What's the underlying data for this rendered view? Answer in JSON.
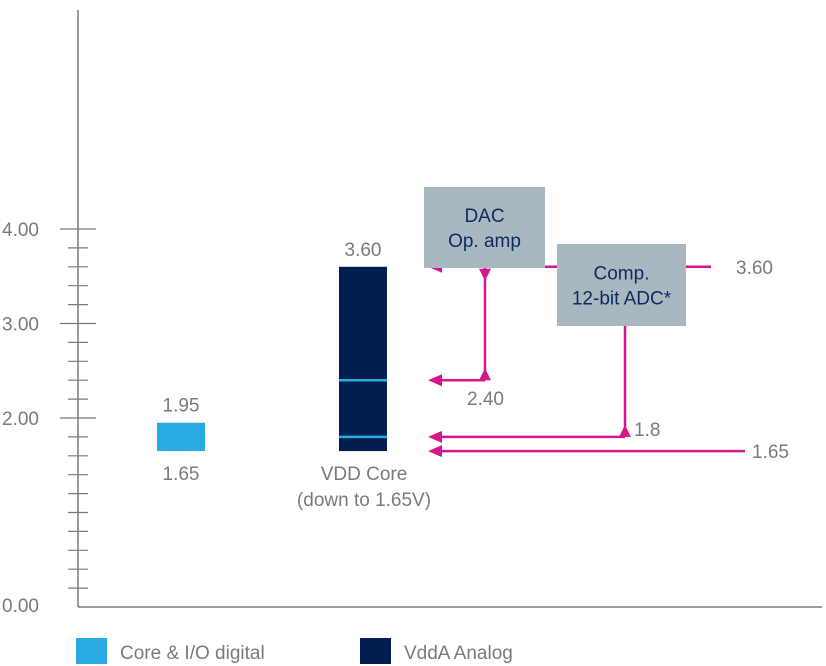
{
  "chart_data": {
    "type": "bar",
    "ylim": [
      0,
      4.0
    ],
    "ytick_labels": [
      "0.00",
      "2.00",
      "3.00",
      "4.00"
    ],
    "ytick_values": [
      0,
      2,
      3,
      4
    ],
    "minor_tick_step": 0.2,
    "bars": [
      {
        "name": "core-io",
        "low": 1.65,
        "high": 1.95,
        "high_label": "1.95",
        "low_label": "1.65",
        "color": "#29abe2",
        "caption": []
      },
      {
        "name": "vdda",
        "low": 1.65,
        "high": 3.6,
        "high_label": "3.60",
        "color": "#001e50",
        "inner_lines": [
          2.4,
          1.8
        ],
        "inner_line_color": "#29abe2",
        "caption": [
          "VDD Core",
          "(down to 1.65V)"
        ]
      }
    ],
    "ranges": [
      {
        "name": "dac-range",
        "low": 2.4,
        "high": 3.6,
        "low_label": "2.40",
        "box_lines": [
          "DAC",
          "Op. amp"
        ]
      },
      {
        "name": "adc-range",
        "low": 1.8,
        "high": 3.6,
        "low_label": "1.8",
        "box_lines": [
          "Comp.",
          "12-bit ADC*"
        ]
      }
    ],
    "marker_lines": [
      {
        "value": 3.6,
        "label": "3.60"
      },
      {
        "value": 1.65,
        "label": "1.65"
      }
    ],
    "legend": [
      {
        "label": "Core & I/O digital",
        "color": "#29abe2"
      },
      {
        "label": "VddA Analog",
        "color": "#001e50"
      }
    ],
    "colors": {
      "arrow": "#d6168b",
      "box": "#a9b8c0",
      "axis": "#7a7a7a"
    }
  }
}
